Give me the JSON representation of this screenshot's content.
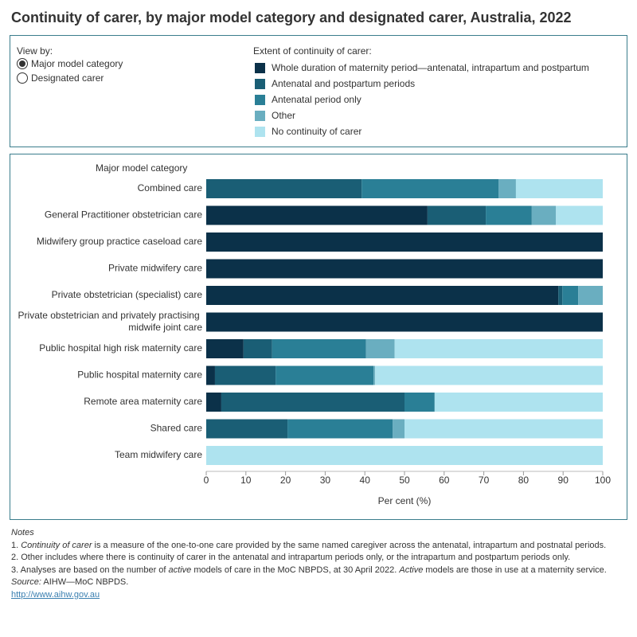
{
  "title": "Continuity of carer, by major model category and designated carer, Australia, 2022",
  "view_by": {
    "label": "View by:",
    "options": [
      "Major model category",
      "Designated carer"
    ],
    "selected": 0
  },
  "chart_data": {
    "type": "stacked-bar-horizontal",
    "legend_title": "Extent of continuity of carer:",
    "y_axis_title": "Major model category",
    "x_axis_title": "Per cent (%)",
    "categories": [
      "Combined care",
      "General Practitioner obstetrician care",
      "Midwifery group practice caseload care",
      "Private midwifery care",
      "Private obstetrician (specialist) care",
      "Private obstetrician and privately practising midwife joint care",
      "Public hospital high risk maternity care",
      "Public hospital maternity care",
      "Remote area maternity care",
      "Shared care",
      "Team midwifery care"
    ],
    "series": [
      {
        "name": "Whole duration of maternity period—antenatal, intrapartum and postpartum",
        "color": "#0b3149",
        "values": [
          0,
          55.8,
          100,
          100,
          88.8,
          100,
          9.4,
          2.2,
          3.8,
          0,
          0
        ]
      },
      {
        "name": "Antenatal and postpartum periods",
        "color": "#1a5e75",
        "values": [
          39.2,
          14.7,
          0,
          0,
          1,
          0,
          7.2,
          15.3,
          46.2,
          20.5,
          0
        ]
      },
      {
        "name": "Antenatal period only",
        "color": "#2a7f96",
        "values": [
          34.5,
          11.6,
          0,
          0,
          4,
          0,
          23.7,
          24.7,
          7.6,
          26.5,
          0
        ]
      },
      {
        "name": "Other",
        "color": "#6aaec0",
        "values": [
          4.4,
          6.1,
          0,
          0,
          6.2,
          0,
          7.2,
          0.4,
          0,
          3,
          0
        ]
      },
      {
        "name": "No continuity of carer",
        "color": "#aee3ef",
        "values": [
          21.9,
          11.8,
          0,
          0,
          0,
          0,
          52.5,
          57.4,
          42.4,
          50,
          100
        ]
      }
    ],
    "xlim": [
      0,
      100
    ],
    "xticks": [
      0,
      10,
      20,
      30,
      40,
      50,
      60,
      70,
      80,
      90,
      100
    ]
  },
  "notes": {
    "heading": "Notes",
    "items": [
      [
        "1. ",
        "Continuity of carer",
        " is a measure of the one-to-one care provided by the same named caregiver across the antenatal, intrapartum and postnatal periods."
      ],
      [
        "2. Other includes where there is continuity of carer in the antenatal and intrapartum periods only, or the intrapartum and postpartum periods only."
      ],
      [
        "3. Analyses are based on the number of ",
        "active",
        " models of care in the MoC NBPDS, at 30 April 2022. ",
        "Active",
        " models are those in use at a maternity service."
      ]
    ],
    "source": [
      "Source:",
      " AIHW—MoC NBPDS."
    ],
    "link": "http://www.aihw.gov.au"
  }
}
